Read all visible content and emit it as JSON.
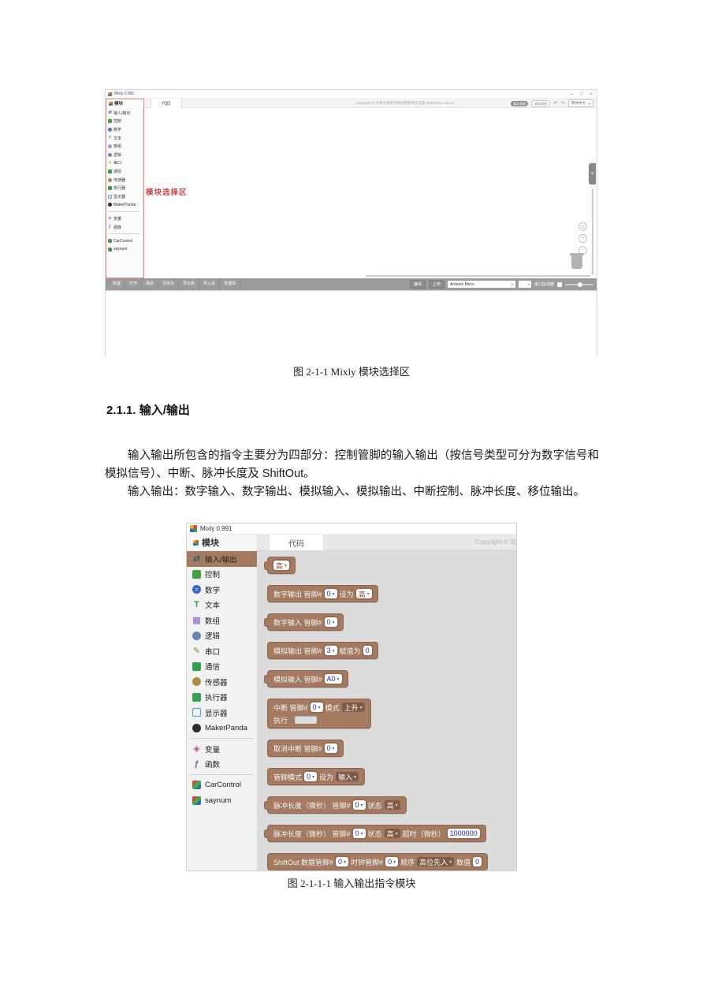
{
  "doc": {
    "caption_fig1": "图 2-1-1 Mixly 模块选择区",
    "heading": "2.1.1.  输入/输出",
    "para1": "输入输出所包含的指令主要分为四部分：控制管脚的输入输出（按信号类型可分为数字信号和模拟信号）、中断、脉冲长度及 ShiftOut。",
    "para2": "输入输出：数字输入、数字输出、模拟输入、模拟输出、中断控制、脉冲长度、移位输出。",
    "caption_fig2": "图 2-1-1-1  输入输出指令模块"
  },
  "shot1": {
    "window_title": "Mixly 0.991",
    "minimize_icon": "–",
    "maximize_icon": "□",
    "close_icon": "×",
    "tab_blocks": "模块",
    "tab_code": "代码",
    "copyright": "Copyright © 北师大教育学部创客教育实验室 maker.bnu.edu.cn",
    "view_toggle_basic": "基本视图",
    "view_toggle_advanced": "高级视图",
    "undo_icon": "↶",
    "redo_icon": "↷",
    "language_select": "简体中文",
    "annotation": "模块选择区",
    "collapse_icon": "<",
    "zoom_center_icon": "⊙",
    "zoom_in_icon": "+",
    "zoom_out_icon": "−",
    "toolbar": [
      "新建",
      "打开",
      "保存",
      "另存为",
      "导出库",
      "导入库",
      "管理库"
    ],
    "compile_button": "编译",
    "upload_button": "上传",
    "board_select": "Arduino Micro",
    "serial_monitor_label": "串口监视器"
  },
  "shot2": {
    "window_title": "Mixly 0.991",
    "tab_blocks": "模块",
    "tab_code": "代码",
    "copyright_partial": "Copyright © 北"
  },
  "categories": [
    {
      "key": "io",
      "label": "输入/输出",
      "icon": "swap-arrows-icon",
      "shape": "plain",
      "glyph": "⇄",
      "color": "#1d5f63",
      "selected": true
    },
    {
      "key": "control",
      "label": "控制",
      "icon": "gamepad-icon",
      "shape": "square",
      "glyph": "",
      "color": "#43a047"
    },
    {
      "key": "math",
      "label": "数学",
      "icon": "math-icon",
      "shape": "circle",
      "glyph": "=",
      "color": "#3a63c0"
    },
    {
      "key": "text",
      "label": "文本",
      "icon": "text-icon",
      "shape": "plain",
      "glyph": "T",
      "color": "#2e9e5b"
    },
    {
      "key": "array",
      "label": "数组",
      "icon": "array-icon",
      "shape": "plain",
      "glyph": "▦",
      "color": "#7e57c2"
    },
    {
      "key": "logic",
      "label": "逻辑",
      "icon": "bulb-icon",
      "shape": "circle",
      "glyph": "",
      "color": "#6488b0"
    },
    {
      "key": "serial",
      "label": "串口",
      "icon": "pencil-icon",
      "shape": "plain",
      "glyph": "✎",
      "color": "#8a9a30"
    },
    {
      "key": "comm",
      "label": "通信",
      "icon": "bird-icon",
      "shape": "square",
      "glyph": "",
      "color": "#34a04a"
    },
    {
      "key": "sensor",
      "label": "传感器",
      "icon": "sensor-icon",
      "shape": "circle",
      "glyph": "",
      "color": "#b08a45"
    },
    {
      "key": "actuator",
      "label": "执行器",
      "icon": "key-icon",
      "shape": "square",
      "glyph": "",
      "color": "#35a04f"
    },
    {
      "key": "display",
      "label": "显示器",
      "icon": "monitor-icon",
      "shape": "outline",
      "glyph": "",
      "color": "#4a9ad8"
    },
    {
      "key": "makerpanda",
      "label": "MakerPanda",
      "icon": "panda-icon",
      "shape": "circle",
      "glyph": "",
      "color": "#2b2b2b"
    },
    {
      "key": "variable",
      "label": "变量",
      "icon": "variable-icon",
      "shape": "plain",
      "glyph": "◈",
      "color": "#c0559c",
      "sep_before": true
    },
    {
      "key": "function",
      "label": "函数",
      "icon": "function-icon",
      "shape": "plain",
      "glyph": "ƒ",
      "color": "#5f7387"
    },
    {
      "key": "carcontrol",
      "label": "CarControl",
      "icon": "cube-icon",
      "shape": "cube",
      "glyph": "",
      "color": "",
      "sep_before": true
    },
    {
      "key": "saynum",
      "label": "saynum",
      "icon": "cube-icon",
      "shape": "cube",
      "glyph": "",
      "color": ""
    }
  ],
  "blocks": [
    {
      "name": "high-low-value-block",
      "shape": "value",
      "parts": [
        {
          "type": "dropdown-white",
          "text": "高",
          "color": "#a3392b"
        }
      ]
    },
    {
      "name": "digital-write-block",
      "shape": "statement",
      "parts": [
        {
          "type": "label",
          "text": "数字输出 管脚#"
        },
        {
          "type": "dropdown-white",
          "text": "0"
        },
        {
          "type": "label",
          "text": "设为"
        },
        {
          "type": "dropdown-white",
          "text": "高",
          "color": "#a3392b"
        }
      ]
    },
    {
      "name": "digital-read-block",
      "shape": "value",
      "parts": [
        {
          "type": "label",
          "text": "数字输入 管脚#"
        },
        {
          "type": "dropdown-white",
          "text": "0"
        }
      ]
    },
    {
      "name": "analog-write-block",
      "shape": "statement",
      "parts": [
        {
          "type": "label",
          "text": "模拟输出 管脚#"
        },
        {
          "type": "dropdown-white",
          "text": "3"
        },
        {
          "type": "label",
          "text": "赋值为"
        },
        {
          "type": "number",
          "text": "0"
        }
      ]
    },
    {
      "name": "analog-read-block",
      "shape": "value",
      "parts": [
        {
          "type": "label",
          "text": "模拟输入 管脚#"
        },
        {
          "type": "dropdown-white",
          "text": "A0"
        }
      ]
    },
    {
      "name": "attach-interrupt-block",
      "shape": "hat",
      "sub_label": "执行",
      "parts": [
        {
          "type": "label",
          "text": "中断 管脚#"
        },
        {
          "type": "dropdown-white",
          "text": "0"
        },
        {
          "type": "label",
          "text": "模式"
        },
        {
          "type": "dropdown-dark",
          "text": "上升"
        }
      ]
    },
    {
      "name": "detach-interrupt-block",
      "shape": "statement",
      "parts": [
        {
          "type": "label",
          "text": "取消中断 管脚#"
        },
        {
          "type": "dropdown-white",
          "text": "0"
        }
      ]
    },
    {
      "name": "pin-mode-block",
      "shape": "statement",
      "parts": [
        {
          "type": "label",
          "text": "管脚模式"
        },
        {
          "type": "dropdown-white",
          "text": "0"
        },
        {
          "type": "label",
          "text": "设为"
        },
        {
          "type": "dropdown-dark",
          "text": "输入"
        }
      ]
    },
    {
      "name": "pulse-in-block",
      "shape": "value",
      "parts": [
        {
          "type": "label",
          "text": "脉冲长度（微秒） 管脚#"
        },
        {
          "type": "dropdown-white",
          "text": "0"
        },
        {
          "type": "label",
          "text": "状态"
        },
        {
          "type": "dropdown-dark",
          "text": "高"
        }
      ]
    },
    {
      "name": "pulse-in-timeout-block",
      "shape": "value",
      "parts": [
        {
          "type": "label",
          "text": "脉冲长度（微秒） 管脚#"
        },
        {
          "type": "dropdown-white",
          "text": "0"
        },
        {
          "type": "label",
          "text": "状态"
        },
        {
          "type": "dropdown-dark",
          "text": "高"
        },
        {
          "type": "label",
          "text": "超时（微秒）"
        },
        {
          "type": "number",
          "text": "1000000"
        }
      ]
    },
    {
      "name": "shift-out-block",
      "shape": "statement",
      "parts": [
        {
          "type": "label",
          "text": "ShiftOut 数据管脚#"
        },
        {
          "type": "dropdown-white",
          "text": "0"
        },
        {
          "type": "label",
          "text": "时钟管脚#"
        },
        {
          "type": "dropdown-white",
          "text": "0"
        },
        {
          "type": "label",
          "text": "顺序"
        },
        {
          "type": "dropdown-dark",
          "text": "高位先入"
        },
        {
          "type": "label",
          "text": "数值"
        },
        {
          "type": "number",
          "text": "0"
        }
      ]
    }
  ],
  "colors": {
    "block_brown": "#a47a60",
    "block_border": "#8d644e",
    "flyout_bg": "#dcdcdc",
    "annotation_red": "#cc4747",
    "field_text_blue": "#2929b8",
    "field_text_red": "#a3392b"
  }
}
